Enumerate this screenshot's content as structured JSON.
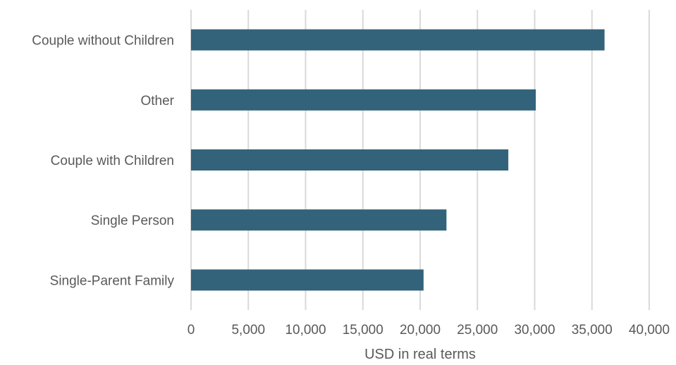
{
  "chart_data": {
    "type": "bar",
    "orientation": "horizontal",
    "categories": [
      "Couple without Children",
      "Other",
      "Couple with Children",
      "Single Person",
      "Single-Parent Family"
    ],
    "values": [
      36100,
      30100,
      27700,
      22300,
      20300
    ],
    "xlabel": "USD in real terms",
    "ylabel": "",
    "xlim": [
      0,
      40000
    ],
    "xticks": [
      0,
      5000,
      10000,
      15000,
      20000,
      25000,
      30000,
      35000,
      40000
    ],
    "xtick_labels": [
      "0",
      "5,000",
      "10,000",
      "15,000",
      "20,000",
      "25,000",
      "30,000",
      "35,000",
      "40,000"
    ],
    "grid": "vertical",
    "legend": "none",
    "bar_color": "#33637a",
    "grid_color": "#d9d9d9",
    "text_color": "#595959"
  }
}
